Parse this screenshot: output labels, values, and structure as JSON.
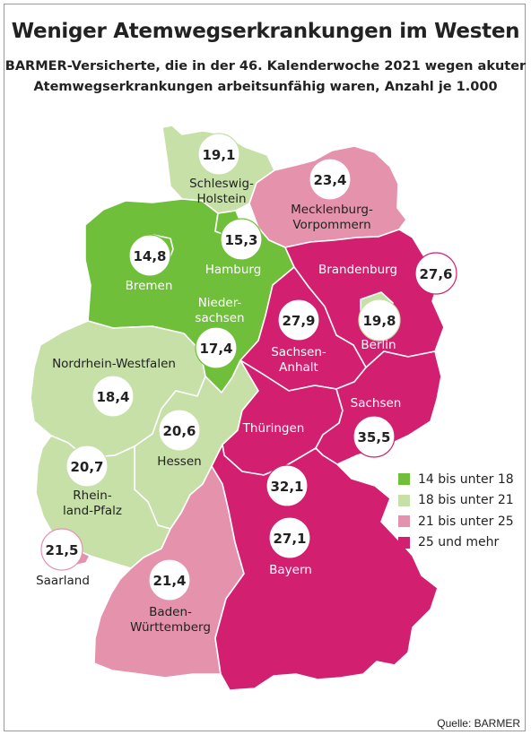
{
  "title": "Weniger Atemwegserkrankungen im Westen",
  "subtitle_line1": "BARMER-Versicherte, die in der 46. Kalenderwoche 2021 wegen akuter",
  "subtitle_line2": "Atemwegserkrankungen arbeitsunfähig waren, Anzahl je 1.000",
  "source": "Quelle: BARMER",
  "colors": {
    "cat1": "#6fbf3b",
    "cat2": "#c6e0a8",
    "cat3": "#e592ac",
    "cat4": "#d21f6f",
    "border": "#ffffff"
  },
  "legend": [
    {
      "label": "14 bis unter 18",
      "category": "cat1"
    },
    {
      "label": "18 bis unter 21",
      "category": "cat2"
    },
    {
      "label": "21 bis unter 25",
      "category": "cat3"
    },
    {
      "label": "25 und mehr",
      "category": "cat4"
    }
  ],
  "states": [
    {
      "id": "schleswig-holstein",
      "name_lines": [
        "Schleswig-",
        "Holstein"
      ],
      "value": "19,1",
      "category": "cat2"
    },
    {
      "id": "mecklenburg-vorpommern",
      "name_lines": [
        "Mecklenburg-",
        "Vorpommern"
      ],
      "value": "23,4",
      "category": "cat3"
    },
    {
      "id": "hamburg",
      "name_lines": [
        "Hamburg"
      ],
      "value": "15,3",
      "category": "cat1"
    },
    {
      "id": "bremen",
      "name_lines": [
        "Bremen"
      ],
      "value": "14,8",
      "category": "cat1"
    },
    {
      "id": "niedersachsen",
      "name_lines": [
        "Nieder-",
        "sachsen"
      ],
      "value": "17,4",
      "category": "cat1"
    },
    {
      "id": "brandenburg",
      "name_lines": [
        "Brandenburg"
      ],
      "value": "27,6",
      "category": "cat4"
    },
    {
      "id": "berlin",
      "name_lines": [
        "Berlin"
      ],
      "value": "19,8",
      "category": "cat2"
    },
    {
      "id": "sachsen-anhalt",
      "name_lines": [
        "Sachsen-",
        "Anhalt"
      ],
      "value": "27,9",
      "category": "cat4"
    },
    {
      "id": "nordrhein-westfalen",
      "name_lines": [
        "Nordrhein-Westfalen"
      ],
      "value": "18,4",
      "category": "cat2"
    },
    {
      "id": "hessen",
      "name_lines": [
        "Hessen"
      ],
      "value": "20,6",
      "category": "cat2"
    },
    {
      "id": "thueringen",
      "name_lines": [
        "Thüringen"
      ],
      "value": "32,1",
      "category": "cat4"
    },
    {
      "id": "sachsen",
      "name_lines": [
        "Sachsen"
      ],
      "value": "35,5",
      "category": "cat4"
    },
    {
      "id": "rheinland-pfalz",
      "name_lines": [
        "Rhein-",
        "land-Pfalz"
      ],
      "value": "20,7",
      "category": "cat2"
    },
    {
      "id": "saarland",
      "name_lines": [
        "Saarland"
      ],
      "value": "21,5",
      "category": "cat3"
    },
    {
      "id": "baden-wuerttemberg",
      "name_lines": [
        "Baden-",
        "Württemberg"
      ],
      "value": "21,4",
      "category": "cat3"
    },
    {
      "id": "bayern",
      "name_lines": [
        "Bayern"
      ],
      "value": "27,1",
      "category": "cat4"
    }
  ]
}
